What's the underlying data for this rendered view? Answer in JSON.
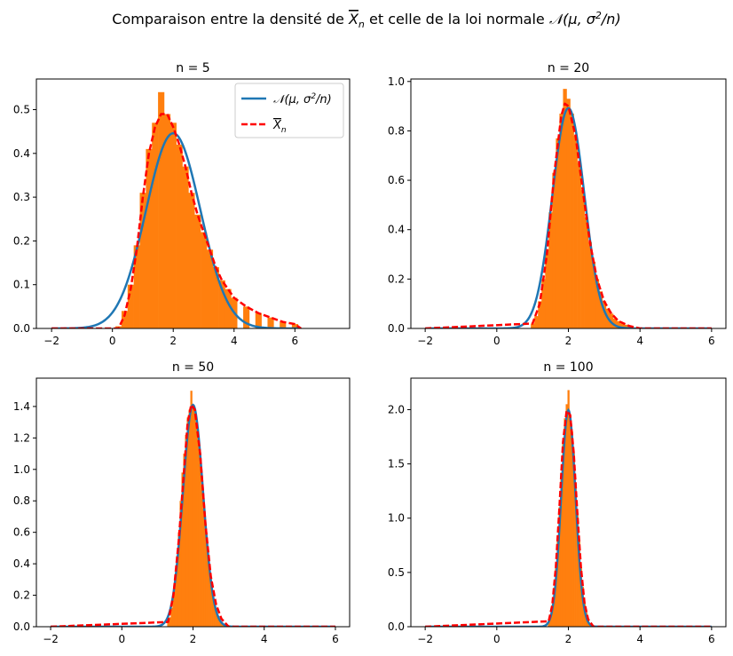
{
  "figure": {
    "suptitle_prefix": "Comparaison entre la densité de ",
    "suptitle_xbar": "X",
    "suptitle_xbar_sub": "n",
    "suptitle_middle": " et celle de la loi normale ",
    "suptitle_normal": "𝒩(μ, σ",
    "suptitle_normal_sup": "2",
    "suptitle_normal_end": "/n)"
  },
  "legend": {
    "normal_label": "𝒩(μ, σ",
    "normal_label_sup": "2",
    "normal_label_end": "/n)",
    "xbar_label": "X",
    "xbar_label_sub": "n"
  },
  "colors": {
    "normal_curve": "#1f77b4",
    "xbar_curve": "#ff0000",
    "histogram": "#ff7f0e"
  },
  "chart_data": [
    {
      "type": "line",
      "title": "n = 5",
      "n": 5,
      "xlim": [
        -2.5,
        7.8
      ],
      "ylim": [
        0,
        0.57
      ],
      "xticks": [
        -2,
        0,
        2,
        4,
        6
      ],
      "yticks": [
        0.0,
        0.1,
        0.2,
        0.3,
        0.4,
        0.5
      ],
      "xtick_labels": [
        "−2",
        "0",
        "2",
        "4",
        "6"
      ],
      "ytick_labels": [
        "0.0",
        "0.1",
        "0.2",
        "0.3",
        "0.4",
        "0.5"
      ],
      "legend_position": "top-right",
      "series": [
        {
          "kind": "normal",
          "mean": 2.0,
          "std": 0.894,
          "peak": 0.446
        },
        {
          "kind": "density",
          "x": [
            -2,
            0.2,
            0.4,
            0.6,
            0.8,
            1.0,
            1.2,
            1.4,
            1.6,
            1.8,
            2.0,
            2.2,
            2.4,
            2.6,
            2.8,
            3.0,
            3.2,
            3.4,
            3.6,
            3.8,
            4.0,
            4.4,
            4.8,
            5.2,
            5.6,
            6.0,
            6.2
          ],
          "y": [
            0,
            0,
            0.03,
            0.09,
            0.18,
            0.3,
            0.4,
            0.46,
            0.49,
            0.49,
            0.46,
            0.42,
            0.37,
            0.31,
            0.26,
            0.22,
            0.18,
            0.14,
            0.11,
            0.09,
            0.07,
            0.05,
            0.035,
            0.025,
            0.015,
            0.01,
            0.0
          ]
        },
        {
          "kind": "histogram",
          "x": [
            0.2,
            0.4,
            0.6,
            0.8,
            1.0,
            1.2,
            1.4,
            1.6,
            1.8,
            2.0,
            2.2,
            2.4,
            2.6,
            2.8,
            3.0,
            3.2,
            3.4,
            3.6,
            3.8,
            4.0,
            4.4,
            4.8,
            5.2,
            5.6,
            6.0
          ],
          "y": [
            0.005,
            0.04,
            0.1,
            0.19,
            0.31,
            0.41,
            0.47,
            0.54,
            0.49,
            0.47,
            0.42,
            0.37,
            0.31,
            0.26,
            0.22,
            0.18,
            0.14,
            0.11,
            0.09,
            0.07,
            0.05,
            0.035,
            0.025,
            0.015,
            0.01
          ],
          "bin_width": 0.2
        }
      ]
    },
    {
      "type": "line",
      "title": "n = 20",
      "n": 20,
      "xlim": [
        -2.4,
        6.4
      ],
      "ylim": [
        0,
        1.01
      ],
      "xticks": [
        -2,
        0,
        2,
        4,
        6
      ],
      "yticks": [
        0.0,
        0.2,
        0.4,
        0.6,
        0.8,
        1.0
      ],
      "xtick_labels": [
        "−2",
        "0",
        "2",
        "4",
        "6"
      ],
      "ytick_labels": [
        "0.0",
        "0.2",
        "0.4",
        "0.6",
        "0.8",
        "1.0"
      ],
      "series": [
        {
          "kind": "normal",
          "mean": 2.0,
          "std": 0.447,
          "peak": 0.892
        },
        {
          "kind": "density",
          "x": [
            -2,
            1.0,
            1.2,
            1.4,
            1.6,
            1.8,
            1.9,
            2.0,
            2.2,
            2.4,
            2.6,
            2.8,
            3.0,
            3.2,
            3.4,
            3.7,
            4.0,
            6.0
          ],
          "y": [
            0,
            0.02,
            0.1,
            0.3,
            0.62,
            0.86,
            0.91,
            0.9,
            0.78,
            0.56,
            0.35,
            0.2,
            0.11,
            0.06,
            0.03,
            0.01,
            0,
            0
          ]
        },
        {
          "kind": "histogram",
          "x": [
            1.0,
            1.1,
            1.2,
            1.3,
            1.4,
            1.5,
            1.6,
            1.7,
            1.8,
            1.9,
            2.0,
            2.1,
            2.2,
            2.3,
            2.4,
            2.5,
            2.6,
            2.7,
            2.8,
            2.9,
            3.0,
            3.1,
            3.2,
            3.3,
            3.4,
            3.5,
            3.6,
            3.7
          ],
          "y": [
            0.02,
            0.05,
            0.11,
            0.2,
            0.32,
            0.47,
            0.63,
            0.77,
            0.87,
            0.97,
            0.93,
            0.87,
            0.78,
            0.67,
            0.56,
            0.45,
            0.35,
            0.27,
            0.2,
            0.15,
            0.11,
            0.08,
            0.06,
            0.04,
            0.03,
            0.02,
            0.015,
            0.01
          ],
          "bin_width": 0.1
        }
      ]
    },
    {
      "type": "line",
      "title": "n = 50",
      "n": 50,
      "xlim": [
        -2.4,
        6.4
      ],
      "ylim": [
        0,
        1.58
      ],
      "xticks": [
        -2,
        0,
        2,
        4,
        6
      ],
      "yticks": [
        0.0,
        0.2,
        0.4,
        0.6,
        0.8,
        1.0,
        1.2,
        1.4
      ],
      "xtick_labels": [
        "−2",
        "0",
        "2",
        "4",
        "6"
      ],
      "ytick_labels": [
        "0.0",
        "0.2",
        "0.4",
        "0.6",
        "0.8",
        "1.0",
        "1.2",
        "1.4"
      ],
      "series": [
        {
          "kind": "normal",
          "mean": 2.0,
          "std": 0.283,
          "peak": 1.41
        },
        {
          "kind": "density",
          "x": [
            -2,
            1.3,
            1.45,
            1.6,
            1.75,
            1.85,
            1.95,
            2.05,
            2.2,
            2.35,
            2.5,
            2.65,
            2.8,
            3.0,
            6.0
          ],
          "y": [
            0,
            0.03,
            0.2,
            0.55,
            1.0,
            1.3,
            1.41,
            1.38,
            1.1,
            0.65,
            0.32,
            0.14,
            0.05,
            0,
            0
          ]
        },
        {
          "kind": "histogram",
          "x": [
            1.3,
            1.35,
            1.4,
            1.45,
            1.5,
            1.55,
            1.6,
            1.65,
            1.7,
            1.75,
            1.8,
            1.85,
            1.9,
            1.95,
            2.0,
            2.05,
            2.1,
            2.15,
            2.2,
            2.25,
            2.3,
            2.35,
            2.4,
            2.45,
            2.5,
            2.55,
            2.6,
            2.65,
            2.7,
            2.75,
            2.8,
            2.85
          ],
          "y": [
            0.03,
            0.06,
            0.12,
            0.2,
            0.31,
            0.45,
            0.6,
            0.8,
            0.98,
            1.1,
            1.22,
            1.33,
            1.38,
            1.5,
            1.4,
            1.37,
            1.3,
            1.2,
            1.1,
            0.9,
            0.75,
            0.62,
            0.5,
            0.4,
            0.31,
            0.22,
            0.16,
            0.11,
            0.07,
            0.05,
            0.03,
            0.02
          ],
          "bin_width": 0.05
        }
      ]
    },
    {
      "type": "line",
      "title": "n = 100",
      "n": 100,
      "xlim": [
        -2.4,
        6.4
      ],
      "ylim": [
        0,
        2.29
      ],
      "xticks": [
        -2,
        0,
        2,
        4,
        6
      ],
      "yticks": [
        0.0,
        0.5,
        1.0,
        1.5,
        2.0
      ],
      "xtick_labels": [
        "−2",
        "0",
        "2",
        "4",
        "6"
      ],
      "ytick_labels": [
        "0.0",
        "0.5",
        "1.0",
        "1.5",
        "2.0"
      ],
      "series": [
        {
          "kind": "normal",
          "mean": 2.0,
          "std": 0.2,
          "peak": 1.995
        },
        {
          "kind": "density",
          "x": [
            -2,
            1.45,
            1.55,
            1.65,
            1.75,
            1.85,
            1.95,
            2.05,
            2.15,
            2.25,
            2.35,
            2.45,
            2.55,
            2.7,
            6.0
          ],
          "y": [
            0,
            0.05,
            0.2,
            0.55,
            1.1,
            1.7,
            1.99,
            1.95,
            1.6,
            1.05,
            0.55,
            0.22,
            0.07,
            0,
            0
          ]
        },
        {
          "kind": "histogram",
          "x": [
            1.45,
            1.5,
            1.55,
            1.6,
            1.65,
            1.7,
            1.75,
            1.8,
            1.85,
            1.9,
            1.95,
            2.0,
            2.05,
            2.1,
            2.15,
            2.2,
            2.25,
            2.3,
            2.35,
            2.4,
            2.45,
            2.5,
            2.55,
            2.6
          ],
          "y": [
            0.05,
            0.1,
            0.2,
            0.36,
            0.55,
            0.8,
            1.1,
            1.42,
            1.7,
            1.92,
            2.05,
            2.18,
            1.95,
            1.8,
            1.6,
            1.33,
            1.05,
            0.8,
            0.55,
            0.37,
            0.22,
            0.13,
            0.07,
            0.03
          ],
          "bin_width": 0.05
        }
      ]
    }
  ]
}
